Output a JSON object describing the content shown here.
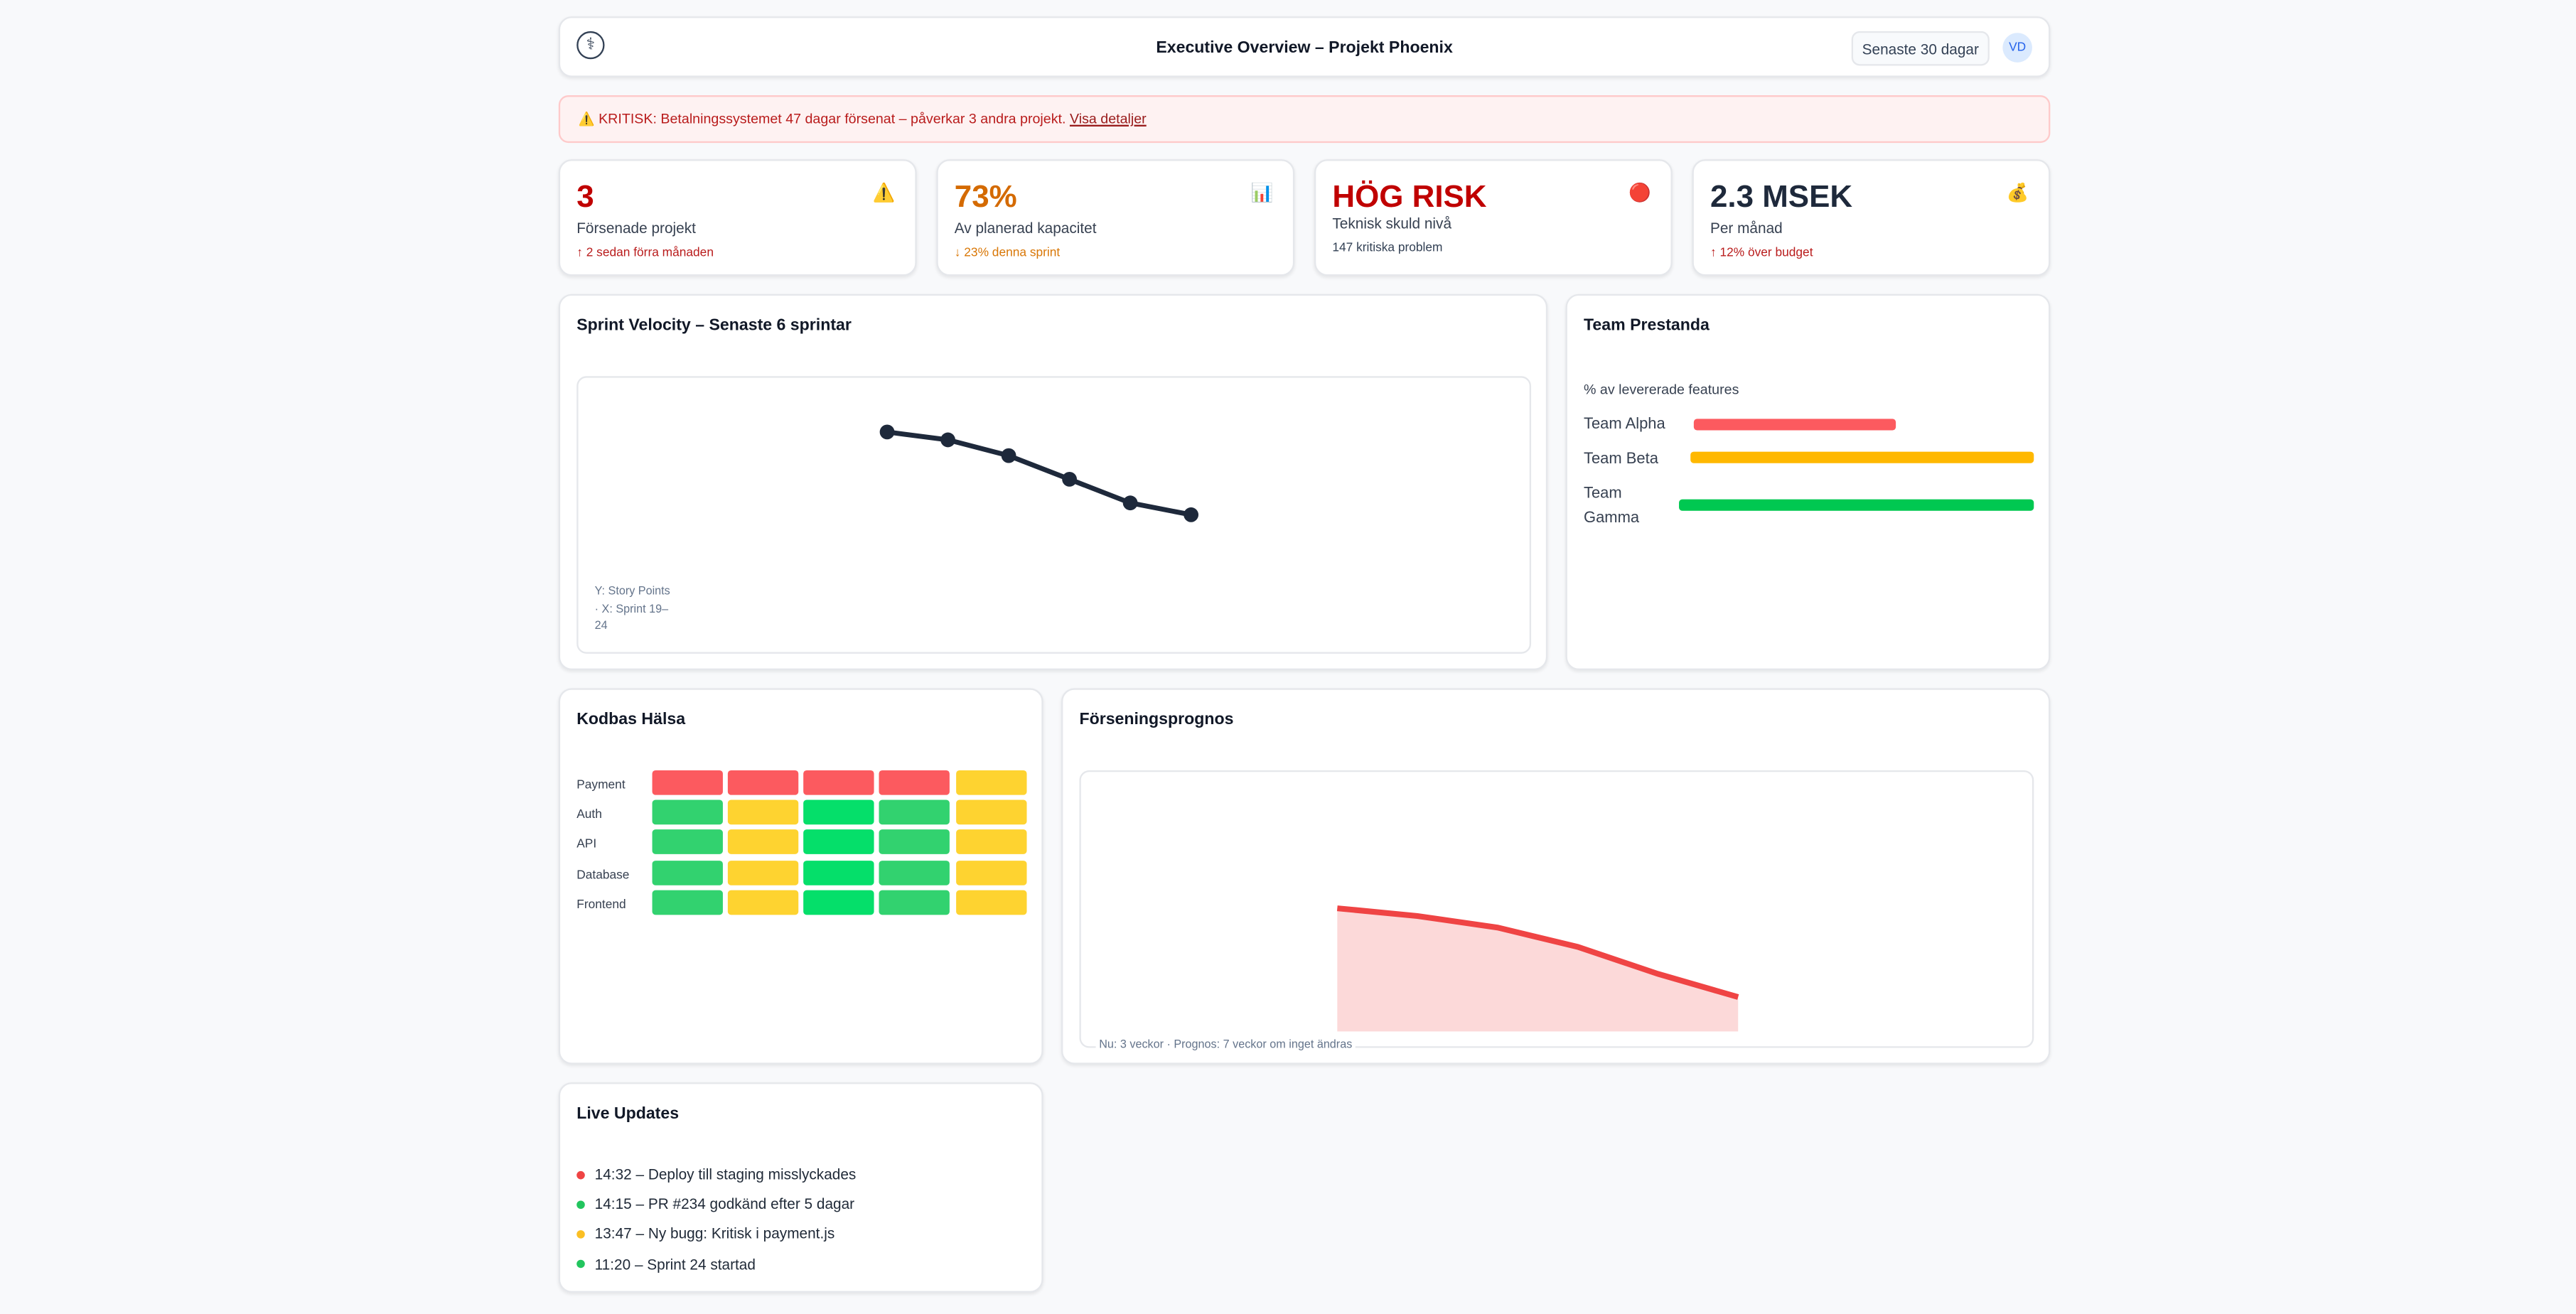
{
  "header": {
    "title": "Executive Overview – Projekt Phoenix",
    "range_button": "Senaste 30 dagar",
    "avatar": "VD",
    "logo_icon": "caduceus-icon"
  },
  "alert": {
    "icon": "⚠️",
    "text": "KRITISK: Betalningssystemet 47 dagar försenat – påverkar 3 andra projekt.",
    "link": "Visa detaljer"
  },
  "kpis": [
    {
      "value": "3",
      "label": "Försenade projekt",
      "sub": "↑ 2 sedan förra månaden",
      "icon": "⚠️",
      "color": "#c00000",
      "sub_color": "#b91c1c"
    },
    {
      "value": "73%",
      "label": "Av planerad kapacitet",
      "sub": "↓ 23% denna sprint",
      "icon": "📊",
      "color": "#d46a00",
      "sub_color": "#d97706"
    },
    {
      "value": "HÖG RISK",
      "label": "Teknisk skuld nivå",
      "sub": "147 kritiska problem",
      "icon": "🔴",
      "color": "#c00000",
      "sub_color": "#334155"
    },
    {
      "value": "2.3 MSEK",
      "label": "Per månad",
      "sub": "↑ 12% över budget",
      "icon": "💰",
      "color": "#1e293b",
      "sub_color": "#b91c1c"
    }
  ],
  "velocity": {
    "title": "Sprint Velocity – Senaste 6 sprintar",
    "note": "Y: Story Points · X: Sprint 19–24"
  },
  "team": {
    "title": "Team Prestanda",
    "subtitle": "% av levererade features",
    "teams": [
      {
        "name": "Team Alpha",
        "percent": 60,
        "color": "#fc5a5f"
      },
      {
        "name": "Team Beta",
        "percent": 100,
        "color": "#ffb800"
      },
      {
        "name": "Team Gamma",
        "percent": 100,
        "color": "#00c851"
      }
    ]
  },
  "codebase": {
    "title": "Kodbas Hälsa",
    "rows": [
      {
        "name": "Payment",
        "cells": [
          "red",
          "red",
          "red",
          "red",
          "yellow"
        ]
      },
      {
        "name": "Auth",
        "cells": [
          "green",
          "yellow",
          "bright",
          "green",
          "yellow"
        ]
      },
      {
        "name": "API",
        "cells": [
          "green",
          "yellow",
          "bright",
          "green",
          "yellow"
        ]
      },
      {
        "name": "Database",
        "cells": [
          "green",
          "yellow",
          "bright",
          "green",
          "yellow"
        ]
      },
      {
        "name": "Frontend",
        "cells": [
          "green",
          "yellow",
          "bright",
          "green",
          "yellow"
        ]
      }
    ],
    "colors": {
      "red": "#fc5a5f",
      "yellow": "#fed330",
      "green": "#32d26f",
      "bright": "#05df6a"
    }
  },
  "forecast": {
    "title": "Förseningsprognos",
    "note": "Nu: 3 veckor · Prognos: 7 veckor om inget ändras",
    "line_color": "#ef4444",
    "fill_color": "#fcd9d9"
  },
  "live": {
    "title": "Live Updates",
    "items": [
      {
        "text": "14:32 – Deploy till staging misslyckades",
        "color": "#ef4444"
      },
      {
        "text": "14:15 – PR #234 godkänd efter 5 dagar",
        "color": "#22c55e"
      },
      {
        "text": "13:47 – Ny bugg: Kritisk i payment.js",
        "color": "#fbbf24"
      },
      {
        "text": "11:20 – Sprint 24 startad",
        "color": "#22c55e"
      }
    ]
  },
  "chart_data": [
    {
      "type": "line",
      "title": "Sprint Velocity – Senaste 6 sprintar",
      "xlabel": "Sprint",
      "ylabel": "Story Points",
      "categories": [
        "19",
        "20",
        "21",
        "22",
        "23",
        "24"
      ],
      "values": [
        45,
        43,
        39,
        33,
        27,
        24
      ],
      "grid": false,
      "color": "#1e293b"
    },
    {
      "type": "area",
      "title": "Förseningsprognos",
      "values": [
        7.5,
        7.3,
        7.0,
        6.5,
        5.8,
        5.2
      ],
      "grid": false,
      "color": "#ef4444"
    }
  ]
}
